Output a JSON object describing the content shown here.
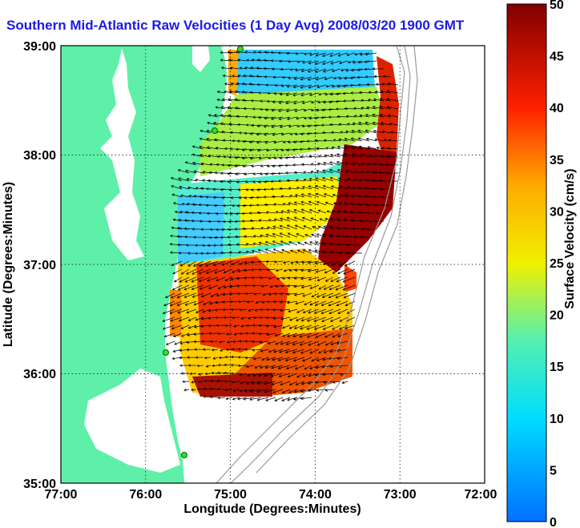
{
  "title": "Southern Mid-Atlantic Raw Velocities (1 Day Avg) 2008/03/20 1900 GMT",
  "axes": {
    "xlabel": "Longitude (Degrees:Minutes)",
    "ylabel": "Latitude (Degrees:Minutes)",
    "x_ticks": [
      "77:00",
      "76:00",
      "75:00",
      "74:00",
      "73:00",
      "72:00"
    ],
    "y_ticks": [
      "39:00",
      "38:00",
      "37:00",
      "36:00",
      "35:00"
    ]
  },
  "colorbar": {
    "label": "Surface Velocity (cm/s)",
    "ticks": [
      "50",
      "45",
      "40",
      "35",
      "30",
      "25",
      "20",
      "15",
      "10",
      "5",
      "0"
    ],
    "range": [
      0,
      50
    ]
  },
  "colors": {
    "land": "#5ef0a8",
    "water": "#ffffff",
    "title": "#1a1ae6",
    "grid": "#000000",
    "isobath": "#999999",
    "station": "#33dd33"
  }
}
